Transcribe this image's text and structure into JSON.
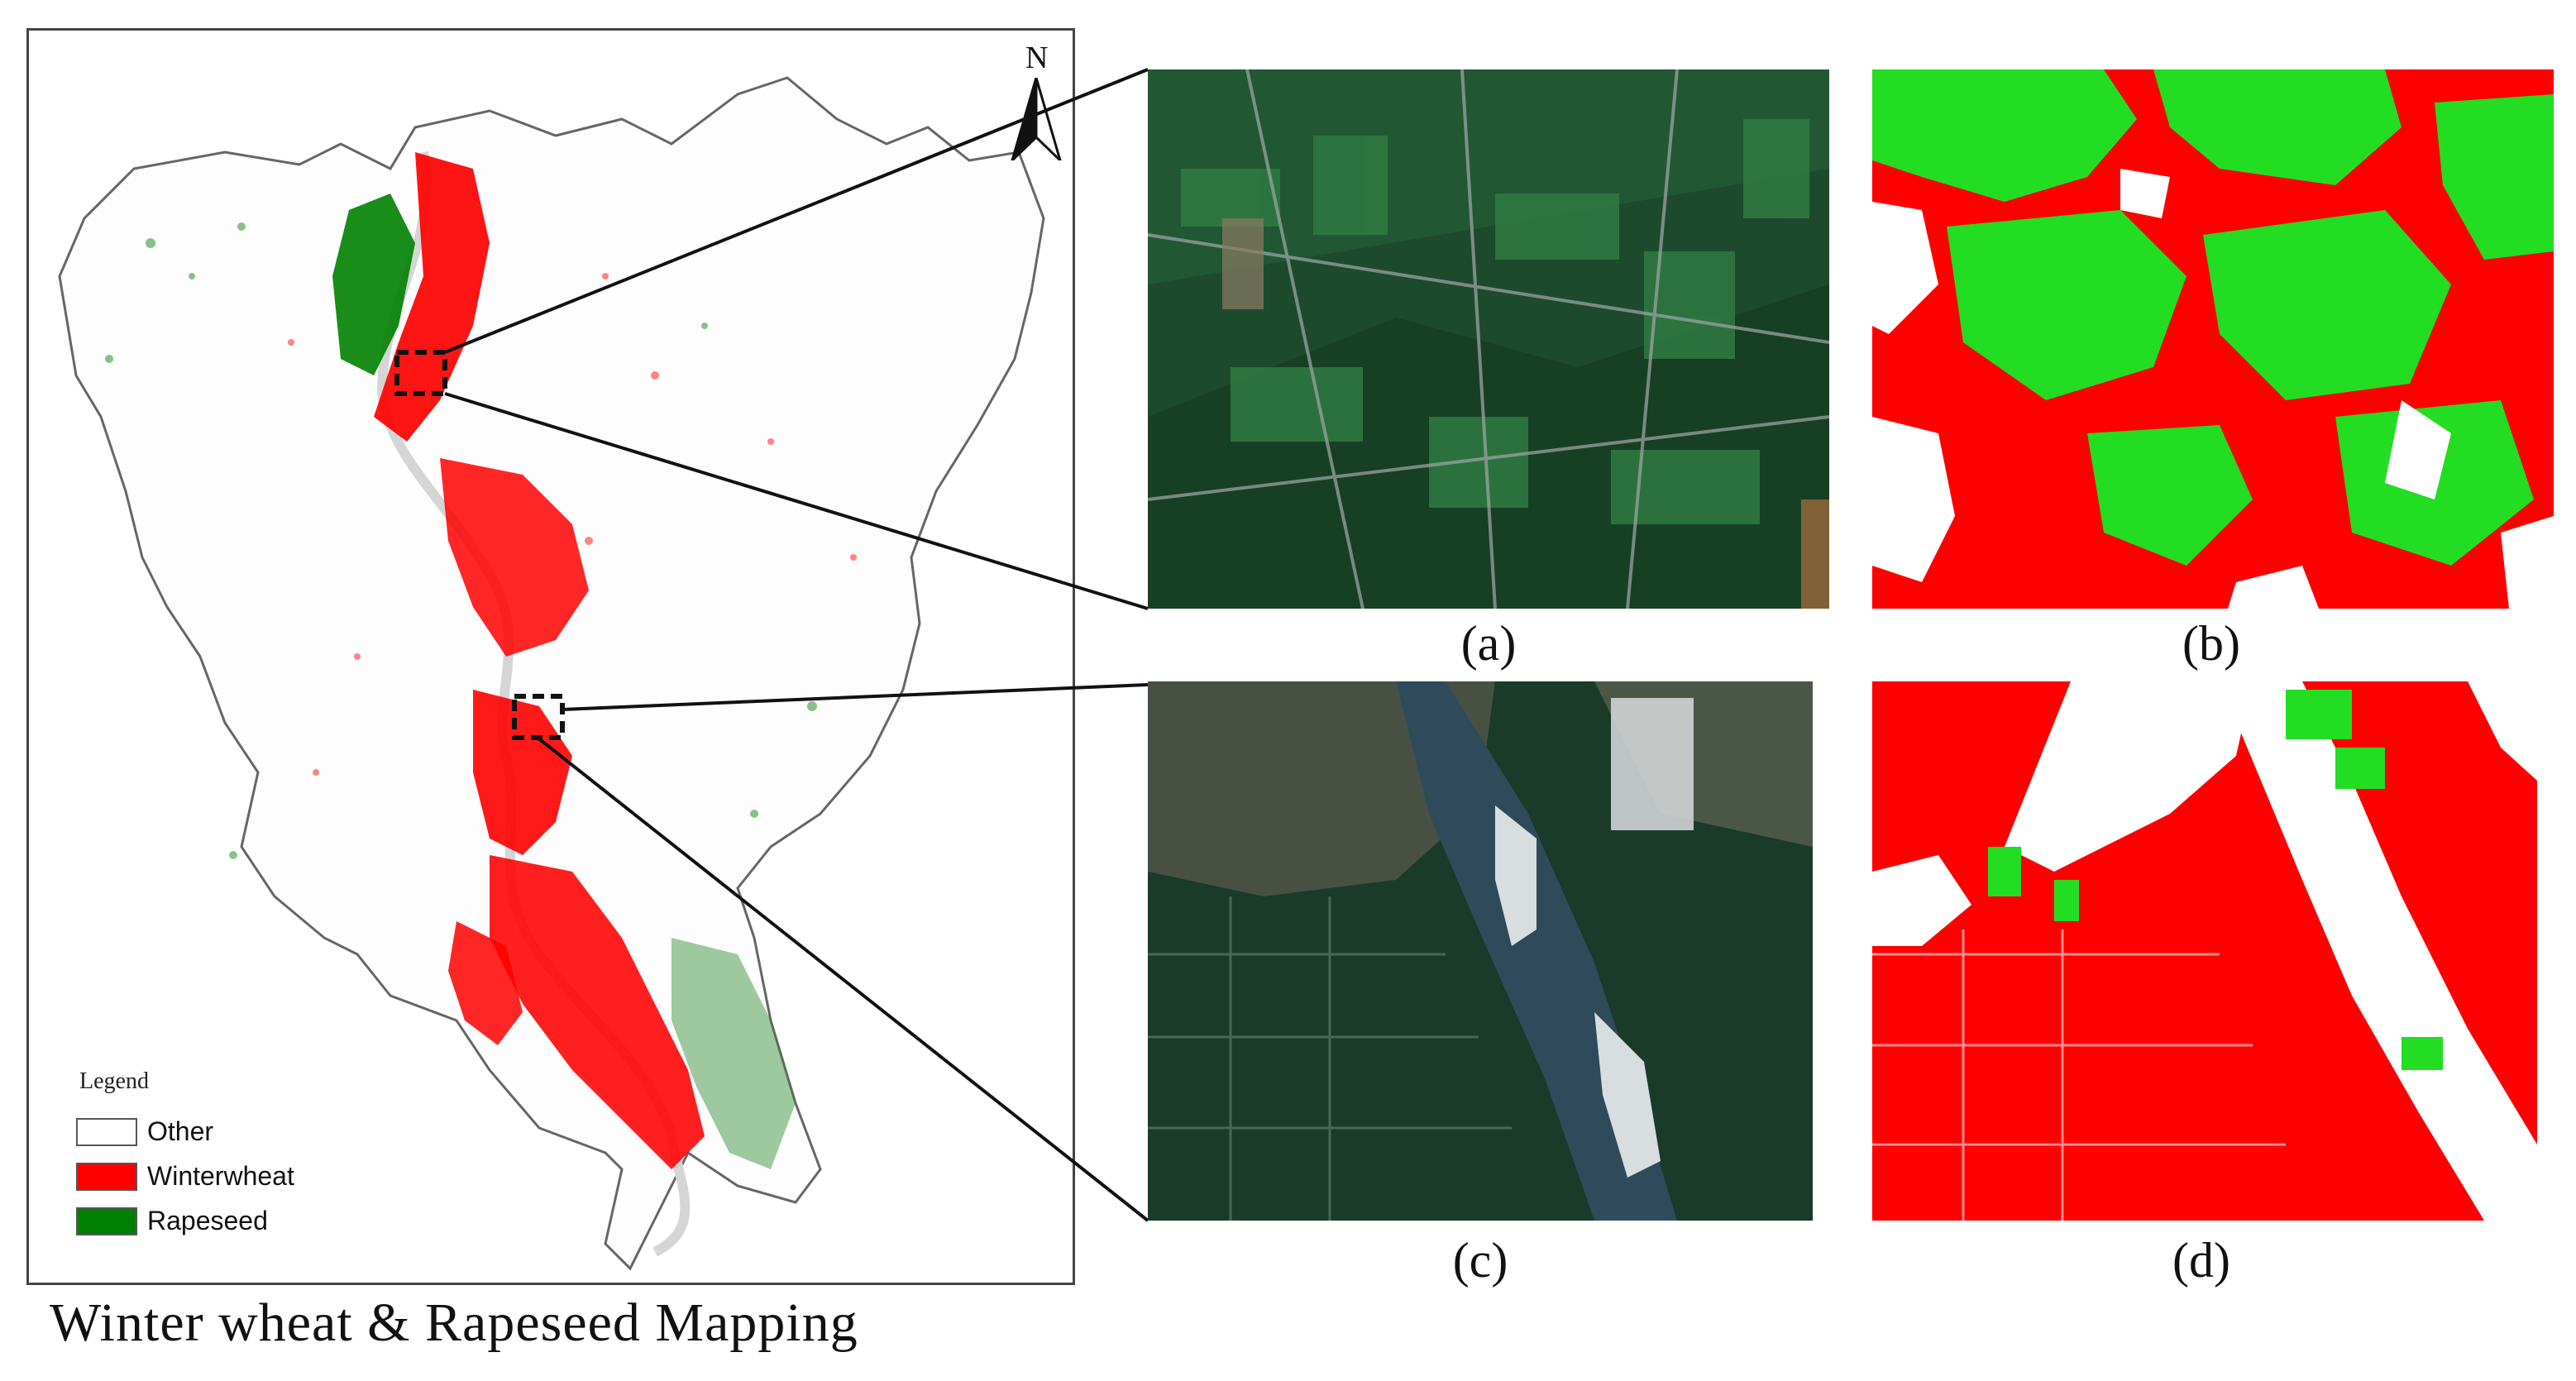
{
  "figure": {
    "caption": "Winter wheat & Rapeseed Mapping",
    "north_label": "N",
    "legend": {
      "title": "Legend",
      "items": [
        {
          "label": "Other",
          "color": "#ffffff"
        },
        {
          "label": "Winterwheat",
          "color": "#ff0000"
        },
        {
          "label": "Rapeseed",
          "color": "#008000"
        }
      ]
    },
    "panels": [
      {
        "id": "a",
        "label": "(a)",
        "kind": "satellite image"
      },
      {
        "id": "b",
        "label": "(b)",
        "kind": "classification map"
      },
      {
        "id": "c",
        "label": "(c)",
        "kind": "satellite image"
      },
      {
        "id": "d",
        "label": "(d)",
        "kind": "classification map"
      }
    ],
    "colors": {
      "winterwheat": "#ff0000",
      "rapeseed_map": "#008000",
      "rapeseed_detail": "#22dd22",
      "other": "#ffffff",
      "boundary": "#555555"
    }
  }
}
